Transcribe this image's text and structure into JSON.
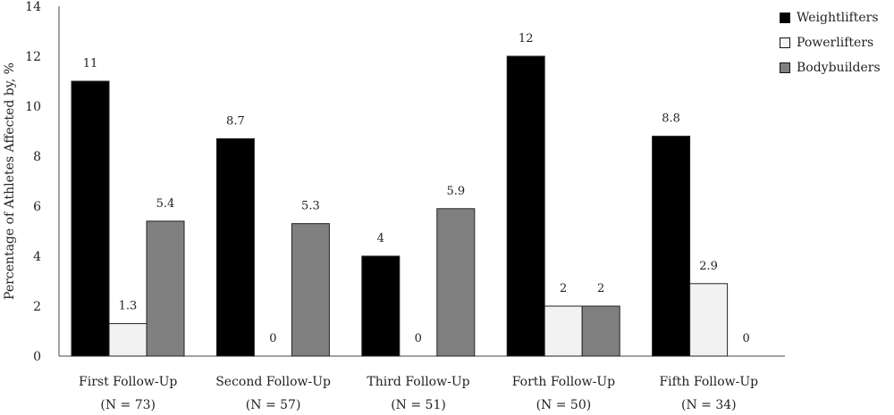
{
  "chart_data": {
    "type": "bar",
    "ylabel": "Percentage of Athletes Affected by, %",
    "ylim": [
      0,
      14
    ],
    "yticks": [
      0,
      2,
      4,
      6,
      8,
      10,
      12,
      14
    ],
    "grid": false,
    "legend_position": "top-right",
    "categories": [
      {
        "name": "First Follow-Up",
        "n": "(N = 73)"
      },
      {
        "name": "Second Follow-Up",
        "n": "(N = 57)"
      },
      {
        "name": "Third Follow-Up",
        "n": "(N = 51)"
      },
      {
        "name": "Forth Follow-Up",
        "n": "(N = 50)"
      },
      {
        "name": "Fifth Follow-Up",
        "n": "(N = 34)"
      }
    ],
    "series": [
      {
        "name": "Weightlifters",
        "color": "#000000",
        "values": [
          11,
          8.7,
          4,
          12,
          8.8
        ],
        "labels": [
          "11",
          "8.7",
          "4",
          "12",
          "8.8"
        ]
      },
      {
        "name": "Powerlifters",
        "color": "#f2f2f2",
        "values": [
          1.3,
          0,
          0,
          2,
          2.9
        ],
        "labels": [
          "1.3",
          "0",
          "0",
          "2",
          "2.9"
        ]
      },
      {
        "name": "Bodybuilders",
        "color": "#808080",
        "values": [
          5.4,
          5.3,
          5.9,
          2,
          0
        ],
        "labels": [
          "5.4",
          "5.3",
          "5.9",
          "2",
          "0"
        ]
      }
    ]
  }
}
